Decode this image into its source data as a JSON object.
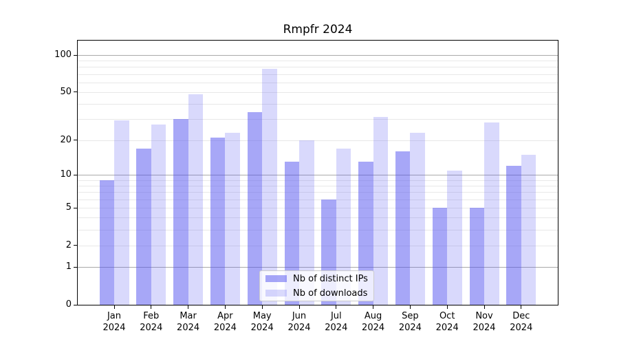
{
  "title": "Rmpfr 2024",
  "colors": {
    "ips_bar": "rgba(80,80,240,0.5)",
    "downloads_bar": "rgba(80,80,240,0.22)",
    "grid_major": "#a9a9a9",
    "grid_minor": "#e8e8e8",
    "axis": "#000000",
    "text": "#000000",
    "legend_bg": "rgba(255,255,255,0.8)",
    "legend_border": "#cccccc"
  },
  "chart_data": {
    "type": "bar",
    "title": "Rmpfr 2024",
    "categories": [
      "Jan",
      "Feb",
      "Mar",
      "Apr",
      "May",
      "Jun",
      "Jul",
      "Aug",
      "Sep",
      "Oct",
      "Nov",
      "Dec"
    ],
    "year_label": "2024",
    "series": [
      {
        "name": "Nb of distinct IPs",
        "values": [
          9,
          17,
          30,
          21,
          34,
          13,
          6,
          13,
          16,
          5,
          5,
          12
        ]
      },
      {
        "name": "Nb of downloads",
        "values": [
          29,
          27,
          48,
          23,
          77,
          20,
          17,
          31,
          23,
          11,
          28,
          15
        ]
      }
    ],
    "yscale": "log1p",
    "ylabel": "",
    "xlabel": "",
    "y_tick_labels": [
      0,
      1,
      2,
      5,
      10,
      20,
      50,
      100
    ],
    "y_major_gridlines": [
      1,
      10,
      100
    ],
    "y_minor_gridlines": [
      2,
      3,
      4,
      5,
      6,
      7,
      8,
      9,
      20,
      30,
      40,
      50,
      60,
      70,
      80,
      90
    ],
    "ylim": [
      0,
      133
    ],
    "grid": true,
    "legend_position": "lower center"
  }
}
